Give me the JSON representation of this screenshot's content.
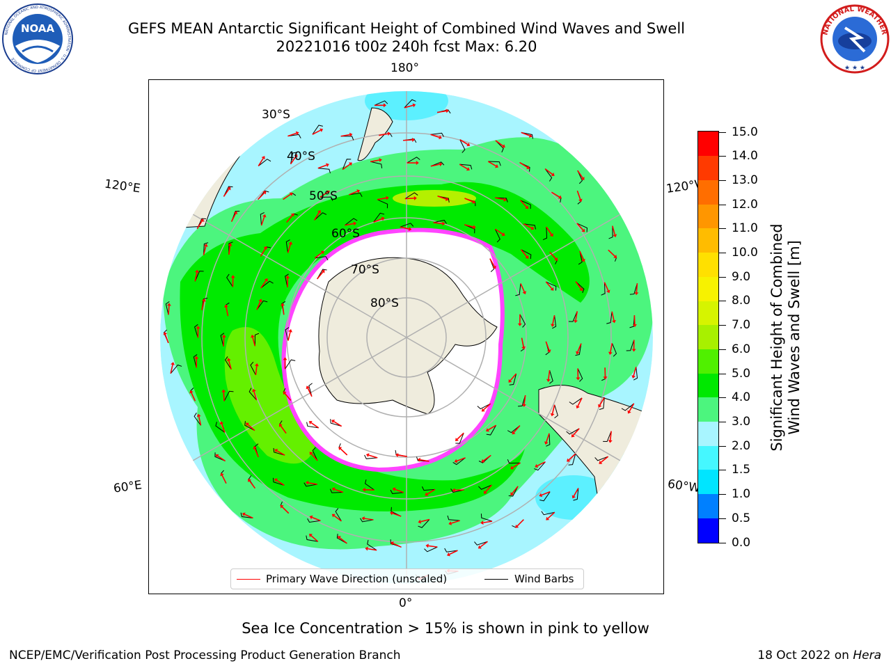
{
  "header": {
    "title_line1": "GEFS MEAN Antarctic Significant Height of Combined Wind Waves and Swell",
    "title_line2": "20221016 t00z 240h fcst   Max: 6.20"
  },
  "logos": {
    "left": "NOAA",
    "left_ring_text": "NATIONAL OCEANIC AND ATMOSPHERIC ADMINISTRATION · U.S. DEPARTMENT OF COMMERCE",
    "right_ring_text": "NATIONAL WEATHER SERVICE"
  },
  "map": {
    "longitude_labels": {
      "top": "180°",
      "upper_left": "120°E",
      "upper_right": "120°W",
      "lower_left": "60°E",
      "lower_right": "60°W",
      "bottom": "0°"
    },
    "latitude_labels": [
      "30°S",
      "40°S",
      "50°S",
      "60°S",
      "70°S",
      "80°S"
    ],
    "colors": {
      "ocean_low": "#a8f5ff",
      "cyan": "#5cf0ff",
      "light_green": "#4cf57e",
      "green": "#00ea00",
      "yellow_green": "#b4f000",
      "land": "#efecdd",
      "sea_ice": "#ff44ff",
      "arrow": "#ff0000",
      "barb": "#000000",
      "grid": "#b0b0b0"
    },
    "legend": {
      "primary_wave_direction": "Primary Wave Direction (unscaled)",
      "wind_barbs": "Wind Barbs"
    }
  },
  "colorbar": {
    "title": "Significant Height of Combined Wind Waves and Swell [m]",
    "title_line1": "Significant Height of Combined",
    "title_line2": "Wind Waves and Swell [m]",
    "ticks": [
      "0.0",
      "0.5",
      "1.0",
      "1.5",
      "2.0",
      "3.0",
      "4.0",
      "5.0",
      "6.0",
      "7.0",
      "8.0",
      "9.0",
      "10.0",
      "11.0",
      "12.0",
      "13.0",
      "14.0",
      "15.0"
    ],
    "colors": [
      "#0000ff",
      "#0080ff",
      "#00e5ff",
      "#45f7ff",
      "#a8f5ff",
      "#4cf57e",
      "#00e800",
      "#50f000",
      "#a8f000",
      "#d6f400",
      "#f7f200",
      "#ffe000",
      "#ffbc00",
      "#ff9600",
      "#ff6e00",
      "#ff3a00",
      "#ff0000"
    ]
  },
  "note": "Sea Ice Concentration > 15% is shown in pink to yellow",
  "footer": {
    "left": "NCEP/EMC/Verification Post Processing Product Generation Branch",
    "right_date": "18 Oct 2022 on ",
    "right_host": "Hera"
  }
}
